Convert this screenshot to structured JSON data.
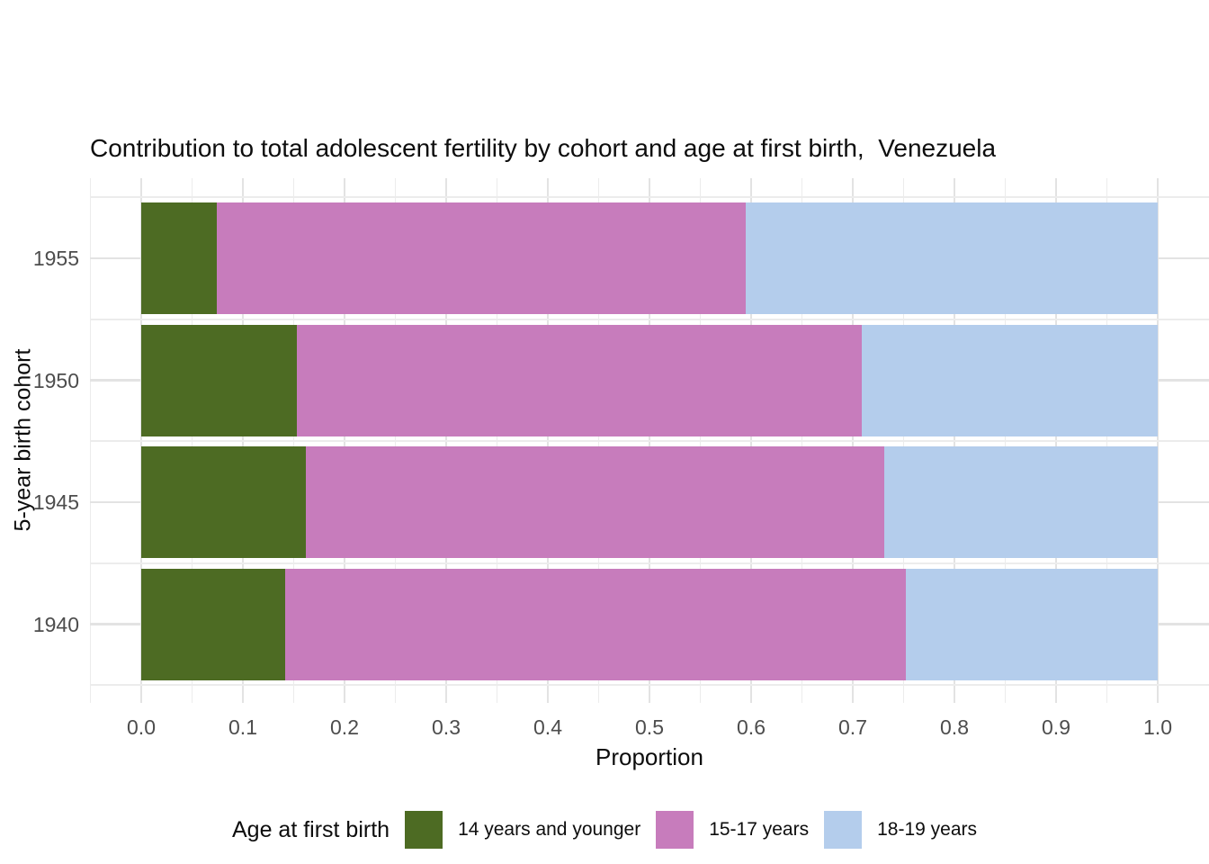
{
  "chart_data": {
    "type": "bar",
    "orientation": "horizontal",
    "stacked": true,
    "title": "Contribution to total adolescent fertility by cohort and age at first birth,  Venezuela",
    "xlabel": "Proportion",
    "ylabel": "5-year birth cohort",
    "categories": [
      "1955",
      "1950",
      "1945",
      "1940"
    ],
    "series": [
      {
        "name": "14 years and younger",
        "color": "#4D6B23",
        "values": [
          0.074,
          0.153,
          0.162,
          0.142
        ]
      },
      {
        "name": "15-17 years",
        "color": "#C77CBC",
        "values": [
          0.521,
          0.556,
          0.569,
          0.61
        ]
      },
      {
        "name": "18-19 years",
        "color": "#B4CDEC",
        "values": [
          0.405,
          0.291,
          0.269,
          0.248
        ]
      }
    ],
    "xlim": [
      0.0,
      1.0
    ],
    "x_ticks": [
      "0.0",
      "0.1",
      "0.2",
      "0.3",
      "0.4",
      "0.5",
      "0.6",
      "0.7",
      "0.8",
      "0.9",
      "1.0"
    ],
    "grid": {
      "major_color": "#E3E3E3",
      "minor_color": "#ECECEC",
      "background": "#FFFFFF"
    },
    "legend": {
      "title": "Age at first birth",
      "position": "bottom"
    }
  }
}
